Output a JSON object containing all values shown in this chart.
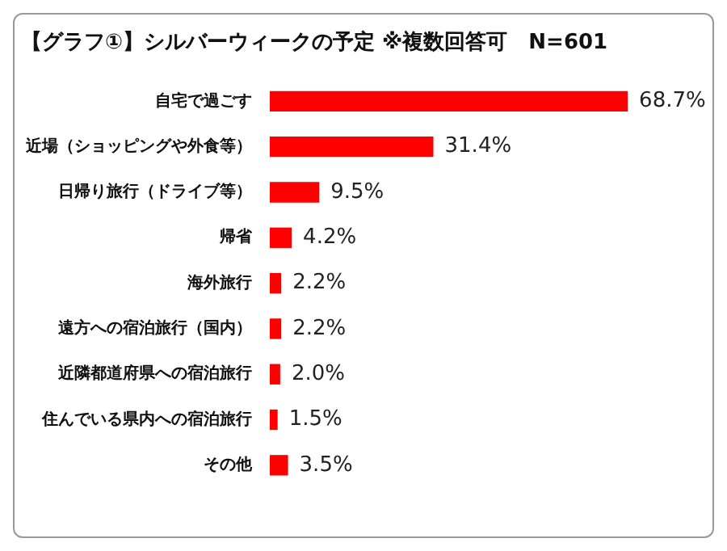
{
  "chart_data": {
    "type": "bar",
    "orientation": "horizontal",
    "title": "【グラフ①】シルバーウィークの予定 ※複数回答可　N=601",
    "categories": [
      "自宅で過ごす",
      "近場（ショッピングや外食等）",
      "日帰り旅行（ドライブ等）",
      "帰省",
      "海外旅行",
      "遠方への宿泊旅行（国内）",
      "近隣都道府県への宿泊旅行",
      "住んでいる県内への宿泊旅行",
      "その他"
    ],
    "values": [
      68.7,
      31.4,
      9.5,
      4.2,
      2.2,
      2.2,
      2.0,
      1.5,
      3.5
    ],
    "value_labels": [
      "68.7%",
      "31.4%",
      "9.5%",
      "4.2%",
      "2.2%",
      "2.2%",
      "2.0%",
      "1.5%",
      "3.5%"
    ],
    "color": "#ff0000",
    "tick_labels": "y"
  }
}
